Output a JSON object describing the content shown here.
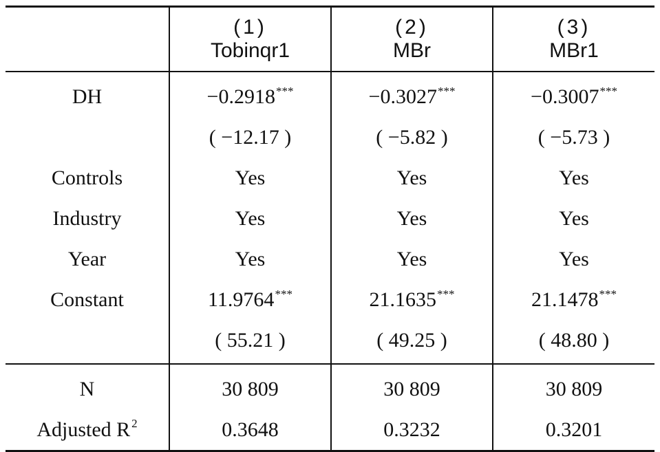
{
  "table": {
    "headers": [
      {
        "number": "(1)",
        "name": "Tobinqr1"
      },
      {
        "number": "(2)",
        "name": "MBr"
      },
      {
        "number": "(3)",
        "name": "MBr1"
      }
    ],
    "rows": [
      {
        "label": "DH",
        "cells": [
          "−0.2918",
          "−0.3027",
          "−0.3007"
        ],
        "stars": [
          "***",
          "***",
          "***"
        ]
      },
      {
        "label": "",
        "cells": [
          "( −12.17 )",
          "( −5.82 )",
          "( −5.73 )"
        ],
        "stars": [
          "",
          "",
          ""
        ]
      },
      {
        "label": "Controls",
        "cells": [
          "Yes",
          "Yes",
          "Yes"
        ],
        "stars": [
          "",
          "",
          ""
        ]
      },
      {
        "label": "Industry",
        "cells": [
          "Yes",
          "Yes",
          "Yes"
        ],
        "stars": [
          "",
          "",
          ""
        ]
      },
      {
        "label": "Year",
        "cells": [
          "Yes",
          "Yes",
          "Yes"
        ],
        "stars": [
          "",
          "",
          ""
        ]
      },
      {
        "label": "Constant",
        "cells": [
          "11.9764",
          "21.1635",
          "21.1478"
        ],
        "stars": [
          "***",
          "***",
          "***"
        ]
      },
      {
        "label": "",
        "cells": [
          "( 55.21 )",
          "( 49.25 )",
          "( 48.80 )"
        ],
        "stars": [
          "",
          "",
          ""
        ]
      }
    ],
    "footer_rows": [
      {
        "label": "N",
        "label_sup": "",
        "cells": [
          "30 809",
          "30 809",
          "30 809"
        ]
      },
      {
        "label": "Adjusted R",
        "label_sup": "2",
        "cells": [
          "0.3648",
          "0.3232",
          "0.3201"
        ]
      }
    ]
  }
}
